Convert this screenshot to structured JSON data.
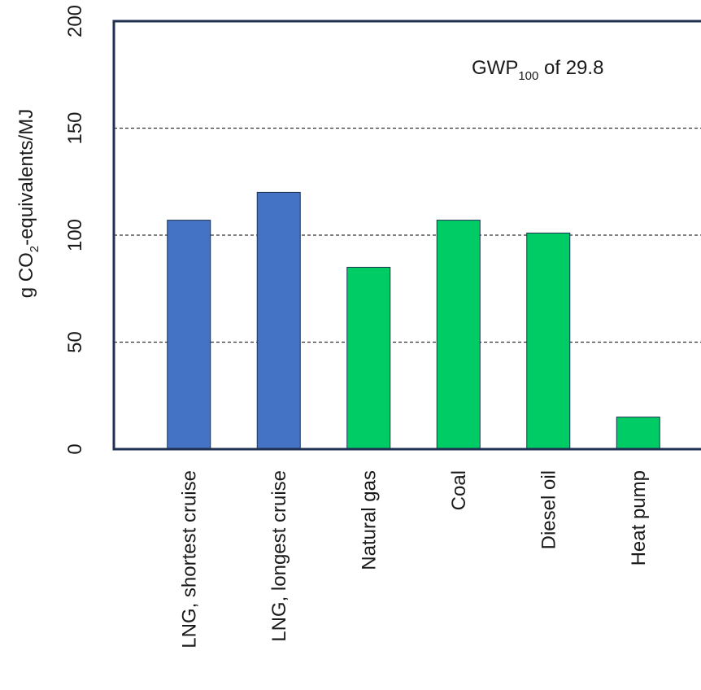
{
  "chart_data": {
    "type": "bar",
    "categories": [
      "LNG, shortest cruise",
      "LNG, longest cruise",
      "Natural gas",
      "Coal",
      "Diesel oil",
      "Heat pump"
    ],
    "values": [
      107,
      120,
      85,
      107,
      101,
      15
    ],
    "bar_colors": [
      "#4472c4",
      "#4472c4",
      "#00cc66",
      "#00cc66",
      "#00cc66",
      "#00cc66"
    ],
    "ylabel": {
      "prefix": "g CO",
      "subscript": "2",
      "suffix": "-equivalents/MJ"
    },
    "yticks": [
      0,
      50,
      100,
      150,
      200
    ],
    "ylim": [
      0,
      200
    ],
    "gridlines": [
      50,
      100,
      150
    ],
    "grid": "dashed horizontal",
    "annotation": {
      "prefix": "GWP",
      "subscript": "100",
      "suffix": " of 29.8"
    }
  },
  "colors": {
    "frame": "#1f3050",
    "lng_bar": "#4472c4",
    "alt_bar": "#00cc66",
    "grid": "#333333"
  }
}
